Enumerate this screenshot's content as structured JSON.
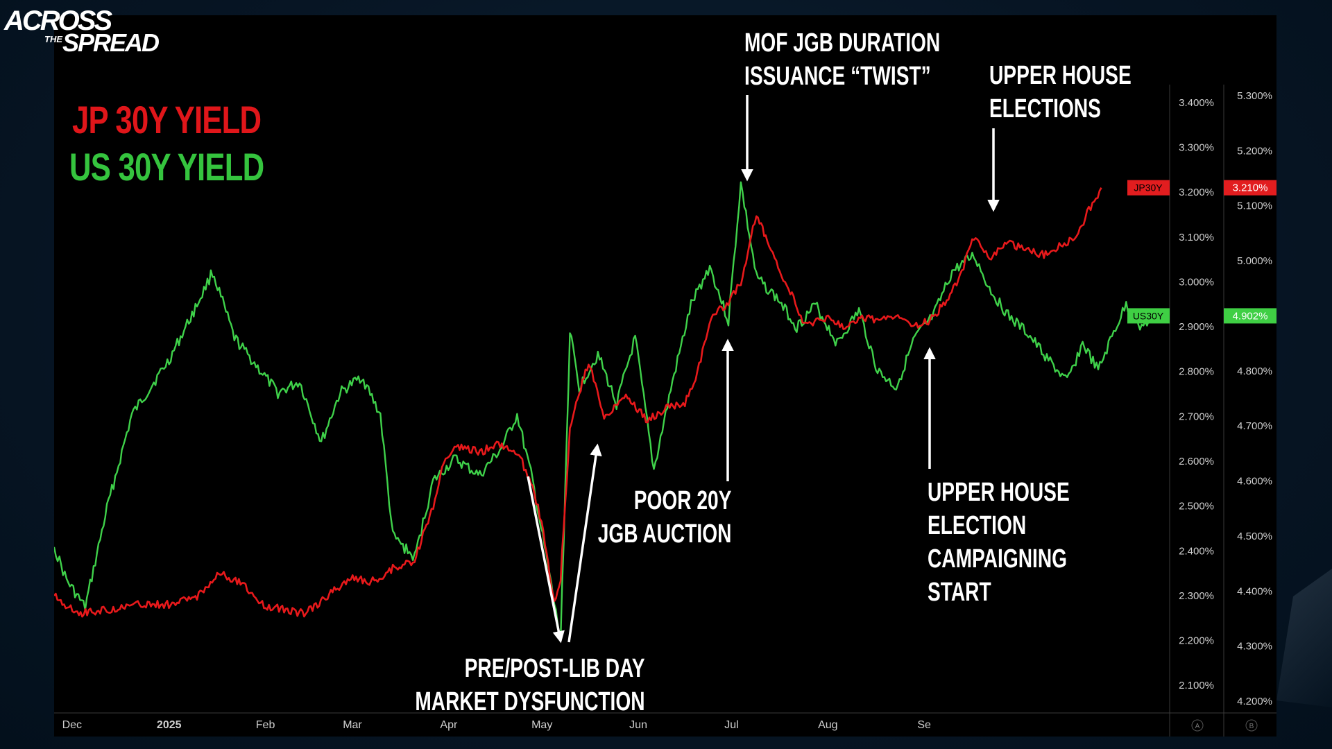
{
  "logo": {
    "line1": "ACROSS",
    "line2": "THE",
    "line3": "SPREAD"
  },
  "legend": {
    "jp": "JP 30Y YIELD",
    "us": "US 30Y YIELD"
  },
  "colors": {
    "jp": "#e8191b",
    "us": "#3fd14a",
    "annotation": "#ffffff",
    "axis_text": "#cfcfcf",
    "background": "#000000"
  },
  "annotations": {
    "mof": [
      "MOF JGB DURATION",
      "ISSUANCE  “TWIST”"
    ],
    "upper_house": [
      "UPPER HOUSE",
      "ELECTIONS"
    ],
    "poor20y": [
      "POOR 20Y",
      "JGB AUCTION"
    ],
    "campaign": [
      "UPPER HOUSE",
      "ELECTION",
      "CAMPAIGNING",
      "START"
    ],
    "libday": [
      "PRE/POST-LIB DAY",
      "MARKET DYSFUNCTION"
    ]
  },
  "chart_data": {
    "type": "line",
    "x_axis": {
      "tick_labels": [
        "Dec",
        "2025",
        "Feb",
        "Mar",
        "Apr",
        "May",
        "Jun",
        "Jul",
        "Aug",
        "Se"
      ],
      "bold_tick": "2025"
    },
    "y_axis_left": {
      "name": "JP 30Y yield",
      "range": [
        2.04,
        3.44
      ],
      "tick_labels": [
        "3.400%",
        "3.300%",
        "3.200%",
        "3.100%",
        "3.000%",
        "2.900%",
        "2.800%",
        "2.700%",
        "2.600%",
        "2.500%",
        "2.400%",
        "2.300%",
        "2.200%",
        "2.100%"
      ],
      "footer_badge": "A"
    },
    "y_axis_right": {
      "name": "US 30Y yield",
      "range": [
        4.18,
        5.32
      ],
      "tick_labels": [
        "5.300%",
        "5.200%",
        "5.100%",
        "5.000%",
        "4.900%",
        "4.800%",
        "4.700%",
        "4.600%",
        "4.500%",
        "4.400%",
        "4.300%",
        "4.200%"
      ],
      "footer_badge": "B"
    },
    "series": [
      {
        "name": "JP30Y",
        "last_value_label": "3.210%",
        "axis": "left",
        "points": [
          [
            "2024-11-25",
            2.3
          ],
          [
            "2024-12-03",
            2.26
          ],
          [
            "2024-12-13",
            2.27
          ],
          [
            "2024-12-23",
            2.28
          ],
          [
            "2025-01-02",
            2.28
          ],
          [
            "2025-01-10",
            2.3
          ],
          [
            "2025-01-17",
            2.35
          ],
          [
            "2025-01-24",
            2.33
          ],
          [
            "2025-01-31",
            2.28
          ],
          [
            "2025-02-07",
            2.27
          ],
          [
            "2025-02-14",
            2.26
          ],
          [
            "2025-02-21",
            2.3
          ],
          [
            "2025-02-28",
            2.34
          ],
          [
            "2025-03-07",
            2.33
          ],
          [
            "2025-03-14",
            2.36
          ],
          [
            "2025-03-21",
            2.38
          ],
          [
            "2025-03-27",
            2.5
          ],
          [
            "2025-03-31",
            2.61
          ],
          [
            "2025-04-04",
            2.63
          ],
          [
            "2025-04-11",
            2.62
          ],
          [
            "2025-04-17",
            2.64
          ],
          [
            "2025-04-23",
            2.62
          ],
          [
            "2025-04-28",
            2.55
          ],
          [
            "2025-05-02",
            2.42
          ],
          [
            "2025-05-05",
            2.28
          ],
          [
            "2025-05-07",
            2.34
          ],
          [
            "2025-05-10",
            2.67
          ],
          [
            "2025-05-13",
            2.75
          ],
          [
            "2025-05-16",
            2.82
          ],
          [
            "2025-05-21",
            2.7
          ],
          [
            "2025-05-28",
            2.75
          ],
          [
            "2025-06-04",
            2.69
          ],
          [
            "2025-06-10",
            2.72
          ],
          [
            "2025-06-16",
            2.73
          ],
          [
            "2025-06-20",
            2.8
          ],
          [
            "2025-06-25",
            2.93
          ],
          [
            "2025-06-30",
            2.95
          ],
          [
            "2025-07-04",
            3.0
          ],
          [
            "2025-07-09",
            3.15
          ],
          [
            "2025-07-12",
            3.1
          ],
          [
            "2025-07-16",
            3.03
          ],
          [
            "2025-07-21",
            2.96
          ],
          [
            "2025-07-25",
            2.9
          ],
          [
            "2025-07-31",
            2.92
          ],
          [
            "2025-08-06",
            2.9
          ],
          [
            "2025-08-12",
            2.92
          ],
          [
            "2025-08-18",
            2.91
          ],
          [
            "2025-08-23",
            2.93
          ],
          [
            "2025-08-30",
            2.9
          ],
          [
            "2025-09-04",
            2.92
          ],
          [
            "2025-09-12",
            3.0
          ],
          [
            "2025-09-17",
            3.1
          ],
          [
            "2025-09-22",
            3.05
          ],
          [
            "2025-09-28",
            3.09
          ],
          [
            "2025-10-04",
            3.07
          ],
          [
            "2025-10-09",
            3.06
          ],
          [
            "2025-10-15",
            3.08
          ],
          [
            "2025-10-20",
            3.1
          ],
          [
            "2025-10-24",
            3.16
          ],
          [
            "2025-10-28",
            3.21
          ]
        ]
      },
      {
        "name": "US30Y",
        "last_value_label": "4.902%",
        "axis": "right",
        "points": [
          [
            "2024-11-25",
            4.48
          ],
          [
            "2024-11-29",
            4.42
          ],
          [
            "2024-12-05",
            4.37
          ],
          [
            "2024-12-12",
            4.55
          ],
          [
            "2024-12-20",
            4.72
          ],
          [
            "2025-01-01",
            4.82
          ],
          [
            "2025-01-10",
            4.92
          ],
          [
            "2025-01-15",
            4.98
          ],
          [
            "2025-01-22",
            4.86
          ],
          [
            "2025-01-29",
            4.81
          ],
          [
            "2025-02-05",
            4.76
          ],
          [
            "2025-02-12",
            4.78
          ],
          [
            "2025-02-19",
            4.67
          ],
          [
            "2025-02-25",
            4.76
          ],
          [
            "2025-03-04",
            4.79
          ],
          [
            "2025-03-10",
            4.72
          ],
          [
            "2025-03-14",
            4.5
          ],
          [
            "2025-03-21",
            4.46
          ],
          [
            "2025-03-27",
            4.6
          ],
          [
            "2025-04-03",
            4.64
          ],
          [
            "2025-04-11",
            4.61
          ],
          [
            "2025-04-18",
            4.66
          ],
          [
            "2025-04-23",
            4.72
          ],
          [
            "2025-04-28",
            4.6
          ],
          [
            "2025-05-04",
            4.41
          ],
          [
            "2025-05-07",
            4.31
          ],
          [
            "2025-05-10",
            4.87
          ],
          [
            "2025-05-13",
            4.77
          ],
          [
            "2025-05-19",
            4.83
          ],
          [
            "2025-05-25",
            4.74
          ],
          [
            "2025-05-31",
            4.86
          ],
          [
            "2025-06-06",
            4.62
          ],
          [
            "2025-06-12",
            4.78
          ],
          [
            "2025-06-18",
            4.92
          ],
          [
            "2025-06-24",
            4.99
          ],
          [
            "2025-06-30",
            4.89
          ],
          [
            "2025-07-04",
            5.14
          ],
          [
            "2025-07-09",
            4.97
          ],
          [
            "2025-07-16",
            4.93
          ],
          [
            "2025-07-22",
            4.88
          ],
          [
            "2025-07-28",
            4.92
          ],
          [
            "2025-08-04",
            4.85
          ],
          [
            "2025-08-11",
            4.91
          ],
          [
            "2025-08-17",
            4.8
          ],
          [
            "2025-08-23",
            4.77
          ],
          [
            "2025-08-29",
            4.86
          ],
          [
            "2025-09-04",
            4.9
          ],
          [
            "2025-09-10",
            4.98
          ],
          [
            "2025-09-17",
            5.01
          ],
          [
            "2025-09-22",
            4.95
          ],
          [
            "2025-09-28",
            4.9
          ],
          [
            "2025-10-04",
            4.87
          ],
          [
            "2025-10-11",
            4.82
          ],
          [
            "2025-10-17",
            4.78
          ],
          [
            "2025-10-22",
            4.85
          ],
          [
            "2025-10-27",
            4.8
          ],
          [
            "2025-11-01",
            4.87
          ],
          [
            "2025-11-05",
            4.92
          ],
          [
            "2025-11-10",
            4.88
          ],
          [
            "2025-11-14",
            4.9
          ]
        ]
      }
    ]
  }
}
